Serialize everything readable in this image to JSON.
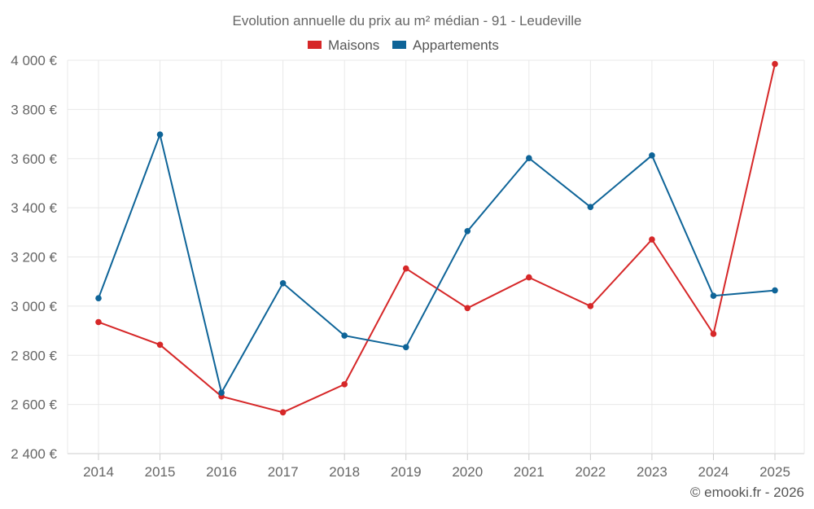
{
  "colors": {
    "maisons": "#d62728",
    "appartements": "#0e6498"
  },
  "credit": "© emooki.fr - 2026",
  "chart_data": {
    "type": "line",
    "title": "Evolution annuelle du prix au m² médian - 91 - Leudeville",
    "categories": [
      "2014",
      "2015",
      "2016",
      "2017",
      "2018",
      "2019",
      "2020",
      "2021",
      "2022",
      "2023",
      "2024",
      "2025"
    ],
    "series": [
      {
        "name": "Maisons",
        "values": [
          2935,
          2843,
          2633,
          2568,
          2682,
          3153,
          2992,
          3117,
          3000,
          3271,
          2887,
          3985
        ]
      },
      {
        "name": "Appartements",
        "values": [
          3032,
          3698,
          2648,
          3093,
          2880,
          2833,
          3305,
          3602,
          3403,
          3613,
          3042,
          3064
        ]
      }
    ],
    "ylim": [
      2400,
      4000
    ],
    "yticks": [
      2400,
      2600,
      2800,
      3000,
      3200,
      3400,
      3600,
      3800,
      4000
    ],
    "ytick_labels": [
      "2 400 €",
      "2 600 €",
      "2 800 €",
      "3 000 €",
      "3 200 €",
      "3 400 €",
      "3 600 €",
      "3 800 €",
      "4 000 €"
    ],
    "xlabel": "",
    "ylabel": "",
    "grid": true,
    "legend": "top-center"
  }
}
